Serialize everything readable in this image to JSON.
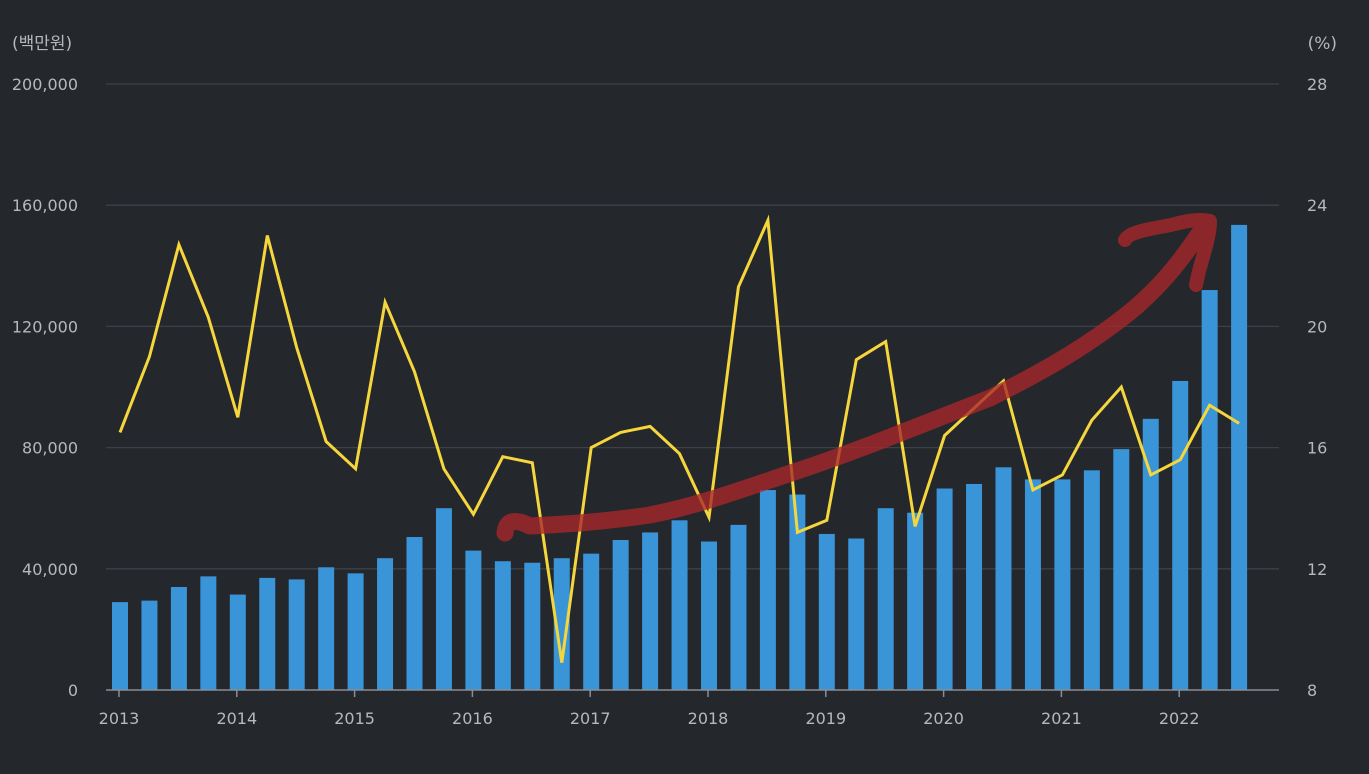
{
  "chart_data": {
    "type": "bar",
    "title": "",
    "y_left_unit": "(백만원)",
    "y_right_unit": "(%)",
    "ylim_left": [
      0,
      200000
    ],
    "ylim_right": [
      8,
      28
    ],
    "y_left_ticks": [
      "0",
      "40,000",
      "80,000",
      "120,000",
      "160,000",
      "200,000"
    ],
    "y_right_ticks": [
      "8",
      "12",
      "16",
      "20",
      "24",
      "28"
    ],
    "x_tick_labels": [
      "2013",
      "2014",
      "2015",
      "2016",
      "2017",
      "2018",
      "2019",
      "2020",
      "2021",
      "2022"
    ],
    "grid": true,
    "colors": {
      "background": "#24272b",
      "grid": "#3d4147",
      "axis": "#8a8e94",
      "text": "#b5b9be",
      "bar": "#3a95d8",
      "line": "#f5d63d",
      "annotation_arrow": "#a8282c"
    },
    "series": [
      {
        "type": "bar",
        "axis": "left",
        "values": [
          29000,
          29500,
          34000,
          37500,
          31500,
          37000,
          36500,
          40500,
          38500,
          43500,
          50500,
          60000,
          46000,
          42500,
          42000,
          43500,
          45000,
          49500,
          52000,
          56000,
          49000,
          54500,
          66000,
          64500,
          51500,
          50000,
          60000,
          58500,
          66500,
          68000,
          73500,
          69500,
          69500,
          72500,
          79500,
          89500,
          102000,
          132000,
          153500
        ]
      },
      {
        "type": "line",
        "axis": "right",
        "values": [
          16.5,
          19.0,
          22.7,
          20.3,
          17.0,
          23.0,
          19.3,
          16.2,
          15.3,
          20.8,
          18.5,
          15.3,
          13.8,
          15.7,
          15.5,
          8.9,
          16.0,
          16.5,
          16.7,
          15.8,
          13.7,
          21.3,
          23.5,
          13.2,
          13.6,
          18.9,
          19.5,
          13.4,
          16.4,
          17.3,
          18.2,
          14.6,
          15.1,
          16.9,
          18.0,
          15.1,
          15.6,
          17.4,
          16.8
        ]
      }
    ],
    "annotation": {
      "type": "hand-drawn upward arrow",
      "description": "rising trend mark"
    }
  }
}
